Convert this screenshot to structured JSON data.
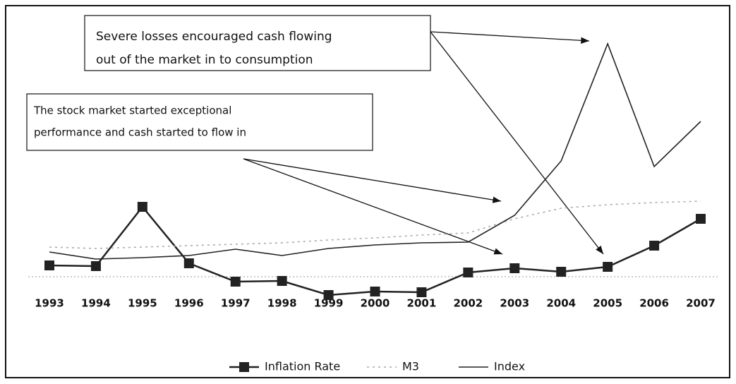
{
  "chart_data": {
    "type": "line",
    "categories": [
      "1993",
      "1994",
      "1995",
      "1996",
      "1997",
      "1998",
      "1999",
      "2000",
      "2001",
      "2002",
      "2003",
      "2004",
      "2005",
      "2006",
      "2007"
    ],
    "series": [
      {
        "name": "Inflation Rate",
        "color": "#222222",
        "marker": "square",
        "values": [
          1.6,
          1.5,
          9.9,
          1.9,
          -0.7,
          -0.6,
          -2.6,
          -2.1,
          -2.2,
          0.6,
          1.2,
          0.7,
          1.4,
          4.4,
          8.2
        ]
      },
      {
        "name": "M3",
        "color": "#aaaaaa",
        "dash": "dotted",
        "values": [
          4.2,
          4.0,
          4.2,
          4.4,
          4.6,
          4.8,
          5.2,
          5.5,
          5.9,
          6.2,
          8.2,
          9.7,
          10.2,
          10.5,
          10.7
        ]
      },
      {
        "name": "Index",
        "color": "#222222",
        "values": [
          3.5,
          2.5,
          2.7,
          3.0,
          3.9,
          3.0,
          4.0,
          4.5,
          4.8,
          4.9,
          8.7,
          16.4,
          33.0,
          15.6,
          22.0
        ]
      }
    ],
    "ylim": [
      -3.8,
      36.2
    ],
    "annotations": [
      {
        "lines": [
          "Severe losses encouraged cash flowing",
          "out of the market in to consumption"
        ]
      },
      {
        "lines": [
          "The stock market started exceptional",
          "performance and cash started to flow in"
        ]
      }
    ],
    "legend": "bottom"
  }
}
